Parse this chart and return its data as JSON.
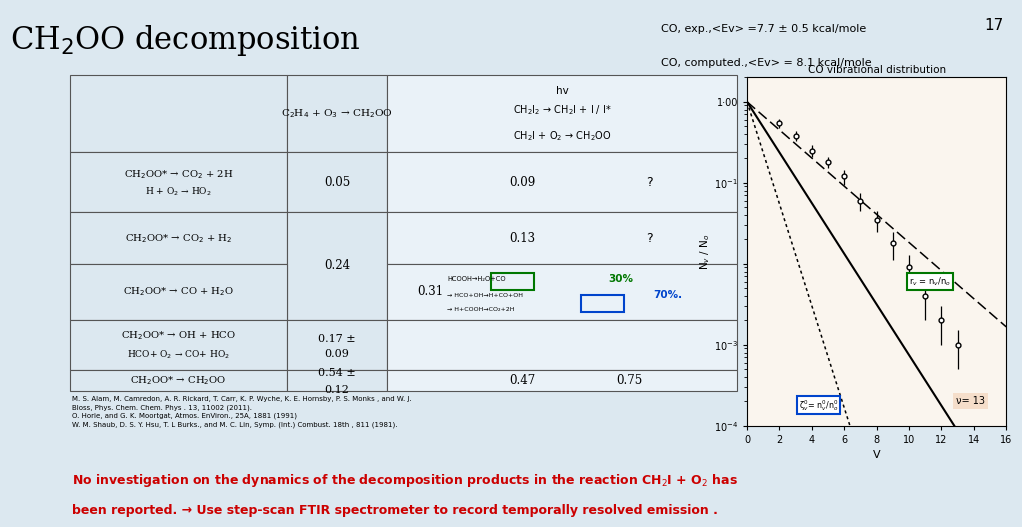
{
  "title": "CH$_2$OO decomposition",
  "title_fontsize": 22,
  "slide_bg": "#dce8f0",
  "top_right_text_line1": "CO, exp.,<Ev> =7.7 ± 0.5 kcal/mole",
  "top_right_text_line2": "CO, computed.,<Ev> = 8.1 kcal/mole",
  "top_right_bg": "#fdf5c0",
  "slide_number": "17",
  "plot_title": "CO vibrational distribution",
  "plot_xlabel": "V",
  "plot_ylabel": "N$_v$ / N$_o$",
  "data_x": [
    2,
    3,
    4,
    5,
    6,
    7,
    8,
    9,
    10,
    11,
    12,
    13
  ],
  "data_y": [
    0.55,
    0.38,
    0.25,
    0.18,
    0.12,
    0.06,
    0.035,
    0.018,
    0.009,
    0.004,
    0.002,
    0.001
  ],
  "data_yerr_lo": [
    0.07,
    0.05,
    0.04,
    0.03,
    0.025,
    0.015,
    0.01,
    0.007,
    0.004,
    0.002,
    0.001,
    0.0005
  ],
  "data_yerr_hi": [
    0.07,
    0.05,
    0.04,
    0.03,
    0.025,
    0.015,
    0.01,
    0.007,
    0.004,
    0.002,
    0.001,
    0.0005
  ],
  "ref_text": "M. S. Alam, M. Camredon, A. R. Rickard, T. Carr, K. P. Wyche, K. E. Hornsby, P. S. Monks , and W. J.\nBloss, Phys. Chem. Chem. Phys . 13, 11002 (2011).\nO. Horie, and G. K. Moortgat, Atmos. EnViron., 25A, 1881 (1991)\nW. M. Shaub, D. S. Y. Hsu, T. L Burks., and M. C. Lin, Symp. (Int.) Combust. 18th , 811 (1981).",
  "bottom_text_line1": "No investigation on the dynamics of the decomposition products in the reaction CH$_2$I + O$_2$ has",
  "bottom_text_line2": "been reported. → Use step-scan FTIR spectrometer to record temporally resolved emission .",
  "bottom_text_color": "#cc0000",
  "table_bg_left": "#dce8f0",
  "table_bg_right": "#dce8f0",
  "plot_bg": "#faf5ee"
}
